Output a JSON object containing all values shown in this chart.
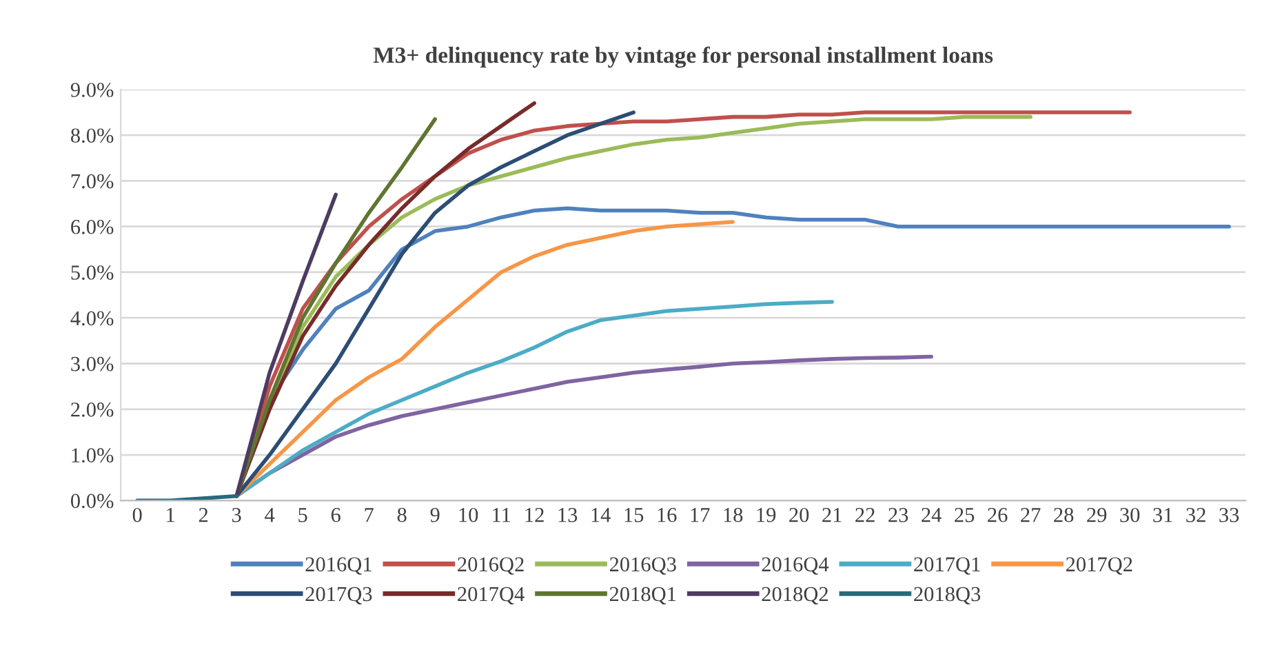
{
  "chart_data": {
    "type": "line",
    "title": "M3+ delinquency rate by vintage for personal installment loans",
    "categories": [
      "0",
      "1",
      "2",
      "3",
      "4",
      "5",
      "6",
      "7",
      "8",
      "9",
      "10",
      "11",
      "12",
      "13",
      "14",
      "15",
      "16",
      "17",
      "18",
      "19",
      "20",
      "21",
      "22",
      "23",
      "24",
      "25",
      "26",
      "27",
      "28",
      "29",
      "30",
      "31",
      "32",
      "33"
    ],
    "ylim": [
      0,
      9
    ],
    "yticks": [
      {
        "value": 0,
        "label": "0.0%"
      },
      {
        "value": 1,
        "label": "1.0%"
      },
      {
        "value": 2,
        "label": "2.0%"
      },
      {
        "value": 3,
        "label": "3.0%"
      },
      {
        "value": 4,
        "label": "4.0%"
      },
      {
        "value": 5,
        "label": "5.0%"
      },
      {
        "value": 6,
        "label": "6.0%"
      },
      {
        "value": 7,
        "label": "7.0%"
      },
      {
        "value": 8,
        "label": "8.0%"
      },
      {
        "value": 9,
        "label": "9.0%"
      }
    ],
    "grid": "y",
    "legend": "bottom",
    "line_style": "solid",
    "series": [
      {
        "name": "2016Q1",
        "color": "#4f81bd",
        "values": [
          null,
          null,
          null,
          0.1,
          2.2,
          3.3,
          4.2,
          4.6,
          5.5,
          5.9,
          6.0,
          6.2,
          6.35,
          6.4,
          6.35,
          6.35,
          6.35,
          6.3,
          6.3,
          6.2,
          6.15,
          6.15,
          6.15,
          6.0,
          6.0,
          6.0,
          6.0,
          6.0,
          6.0,
          6.0,
          6.0,
          6.0,
          6.0,
          6.0
        ]
      },
      {
        "name": "2016Q2",
        "color": "#c0504d",
        "values": [
          null,
          null,
          null,
          0.1,
          2.5,
          4.2,
          5.2,
          6.0,
          6.6,
          7.1,
          7.6,
          7.9,
          8.1,
          8.2,
          8.25,
          8.3,
          8.3,
          8.35,
          8.4,
          8.4,
          8.45,
          8.45,
          8.5,
          8.5,
          8.5,
          8.5,
          8.5,
          8.5,
          8.5,
          8.5,
          8.5,
          null,
          null,
          null
        ]
      },
      {
        "name": "2016Q3",
        "color": "#9bbb59",
        "values": [
          null,
          null,
          null,
          0.1,
          2.2,
          3.8,
          4.9,
          5.6,
          6.2,
          6.6,
          6.9,
          7.1,
          7.3,
          7.5,
          7.65,
          7.8,
          7.9,
          7.95,
          8.05,
          8.15,
          8.25,
          8.3,
          8.35,
          8.35,
          8.35,
          8.4,
          8.4,
          8.4,
          null,
          null,
          null,
          null,
          null,
          null
        ]
      },
      {
        "name": "2016Q4",
        "color": "#8064a2",
        "values": [
          null,
          null,
          null,
          0.1,
          0.6,
          1.0,
          1.4,
          1.65,
          1.85,
          2.0,
          2.15,
          2.3,
          2.45,
          2.6,
          2.7,
          2.8,
          2.87,
          2.93,
          3.0,
          3.03,
          3.07,
          3.1,
          3.12,
          3.13,
          3.15,
          null,
          null,
          null,
          null,
          null,
          null,
          null,
          null,
          null
        ]
      },
      {
        "name": "2017Q1",
        "color": "#4bacc6",
        "values": [
          null,
          null,
          null,
          0.1,
          0.6,
          1.1,
          1.5,
          1.9,
          2.2,
          2.5,
          2.8,
          3.05,
          3.35,
          3.7,
          3.95,
          4.05,
          4.15,
          4.2,
          4.25,
          4.3,
          4.33,
          4.35,
          null,
          null,
          null,
          null,
          null,
          null,
          null,
          null,
          null,
          null,
          null,
          null
        ]
      },
      {
        "name": "2017Q2",
        "color": "#f79646",
        "values": [
          null,
          null,
          null,
          0.1,
          0.8,
          1.5,
          2.2,
          2.7,
          3.1,
          3.8,
          4.4,
          5.0,
          5.35,
          5.6,
          5.75,
          5.9,
          6.0,
          6.05,
          6.1,
          null,
          null,
          null,
          null,
          null,
          null,
          null,
          null,
          null,
          null,
          null,
          null,
          null,
          null,
          null
        ]
      },
      {
        "name": "2017Q3",
        "color": "#2c4d75",
        "values": [
          null,
          null,
          null,
          0.1,
          1.0,
          2.0,
          3.0,
          4.2,
          5.4,
          6.3,
          6.9,
          7.3,
          7.65,
          8.0,
          8.25,
          8.5,
          null,
          null,
          null,
          null,
          null,
          null,
          null,
          null,
          null,
          null,
          null,
          null,
          null,
          null,
          null,
          null,
          null,
          null
        ]
      },
      {
        "name": "2017Q4",
        "color": "#772c2a",
        "values": [
          null,
          null,
          null,
          0.1,
          2.0,
          3.6,
          4.7,
          5.6,
          6.4,
          7.1,
          7.7,
          8.2,
          8.7,
          null,
          null,
          null,
          null,
          null,
          null,
          null,
          null,
          null,
          null,
          null,
          null,
          null,
          null,
          null,
          null,
          null,
          null,
          null,
          null,
          null
        ]
      },
      {
        "name": "2018Q1",
        "color": "#5f7530",
        "values": [
          null,
          null,
          null,
          0.1,
          2.2,
          4.0,
          5.2,
          6.3,
          7.3,
          8.35,
          null,
          null,
          null,
          null,
          null,
          null,
          null,
          null,
          null,
          null,
          null,
          null,
          null,
          null,
          null,
          null,
          null,
          null,
          null,
          null,
          null,
          null,
          null,
          null
        ]
      },
      {
        "name": "2018Q2",
        "color": "#4d3b62",
        "values": [
          null,
          null,
          null,
          0.1,
          2.8,
          4.8,
          6.7,
          null,
          null,
          null,
          null,
          null,
          null,
          null,
          null,
          null,
          null,
          null,
          null,
          null,
          null,
          null,
          null,
          null,
          null,
          null,
          null,
          null,
          null,
          null,
          null,
          null,
          null,
          null
        ]
      },
      {
        "name": "2018Q3",
        "color": "#276a7c",
        "values": [
          0,
          0,
          0.05,
          0.1,
          null,
          null,
          null,
          null,
          null,
          null,
          null,
          null,
          null,
          null,
          null,
          null,
          null,
          null,
          null,
          null,
          null,
          null,
          null,
          null,
          null,
          null,
          null,
          null,
          null,
          null,
          null,
          null,
          null,
          null
        ]
      }
    ]
  }
}
